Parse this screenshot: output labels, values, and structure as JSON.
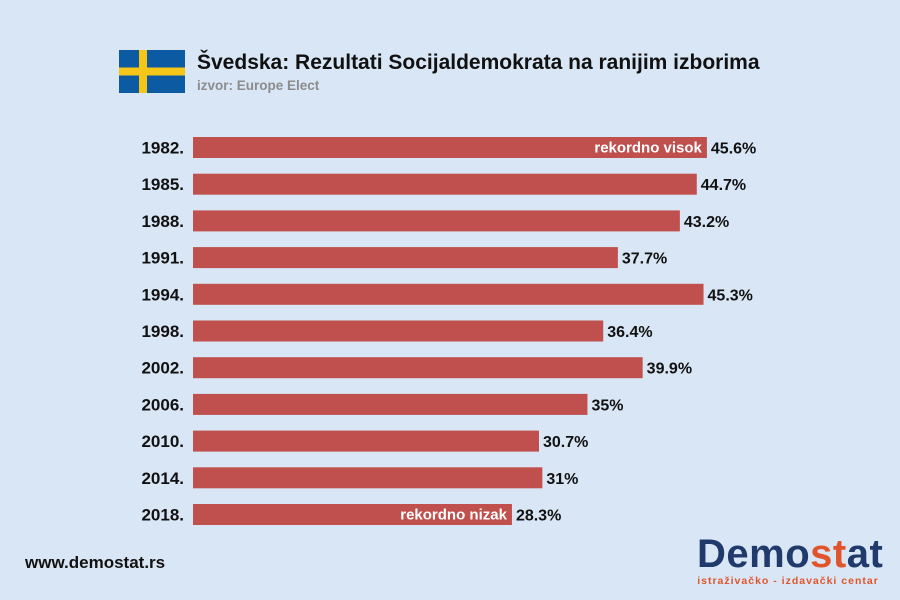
{
  "header": {
    "title": "Švedska: Rezultati Socijaldemokrata na ranijim izborima",
    "subtitle": "izvor: Europe Elect",
    "flag_icon": "sweden-flag-icon",
    "flag_colors": {
      "blue": "#0b5aa2",
      "yellow": "#f5c518"
    }
  },
  "chart_data": {
    "type": "bar",
    "orientation": "horizontal",
    "categories": [
      "1982.",
      "1985.",
      "1988.",
      "1991.",
      "1994.",
      "1998.",
      "2002.",
      "2006.",
      "2010.",
      "2014.",
      "2018."
    ],
    "values": [
      45.6,
      44.7,
      43.2,
      37.7,
      45.3,
      36.4,
      39.9,
      35,
      30.7,
      31,
      28.3
    ],
    "value_labels": [
      "45.6%",
      "44.7%",
      "43.2%",
      "37.7%",
      "45.3%",
      "36.4%",
      "39.9%",
      "35%",
      "30.7%",
      "31%",
      "28.3%"
    ],
    "annotations": [
      {
        "category": "1982.",
        "text": "rekordno visok"
      },
      {
        "category": "2018.",
        "text": "rekordno nizak"
      }
    ],
    "xlim": [
      0,
      46
    ],
    "grid": false,
    "bar_color": "#c0504d",
    "title": "Švedska: Rezultati Socijaldemokrata na ranijim izborima",
    "subtitle": "izvor: Europe Elect"
  },
  "footer": {
    "url": "www.demostat.rs",
    "logo_main_a": "Demo",
    "logo_main_b": "st",
    "logo_main_c": "at",
    "logo_sub": "istraživačko - izdavački centar",
    "logo_colors": {
      "dark": "#1f3a6b",
      "accent": "#e0552b"
    }
  },
  "colors": {
    "background": "#d9e6f5",
    "bar": "#c0504d"
  }
}
